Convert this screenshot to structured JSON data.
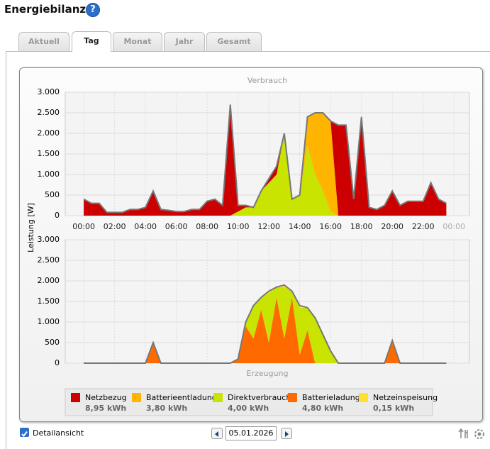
{
  "header": {
    "title": "Energiebilanz",
    "help": "?"
  },
  "tabs": [
    "Aktuell",
    "Tag",
    "Monat",
    "Jahr",
    "Gesamt"
  ],
  "active_tab": 1,
  "y_axis_label": "Leistung [W]",
  "chart_data": [
    {
      "type": "area",
      "stacked": true,
      "title": "Verbrauch",
      "xlim": [
        -1.2,
        25
      ],
      "ylim": [
        0,
        3000
      ],
      "xticks": [
        {
          "value": 0,
          "label": "00:00"
        },
        {
          "value": 2,
          "label": "02:00"
        },
        {
          "value": 4,
          "label": "04:00"
        },
        {
          "value": 6,
          "label": "06:00"
        },
        {
          "value": 8,
          "label": "08:00"
        },
        {
          "value": 10,
          "label": "10:00"
        },
        {
          "value": 12,
          "label": "12:00"
        },
        {
          "value": 14,
          "label": "14:00"
        },
        {
          "value": 16,
          "label": "16:00"
        },
        {
          "value": 18,
          "label": "18:00"
        },
        {
          "value": 20,
          "label": "20:00"
        },
        {
          "value": 22,
          "label": "22:00"
        },
        {
          "value": 24,
          "label": "00:00"
        }
      ],
      "yticks": [
        0,
        {
          "value": 500,
          "label": "500"
        },
        {
          "value": 1000,
          "label": "1.000"
        },
        {
          "value": 1500,
          "label": "1.500"
        },
        {
          "value": 2000,
          "label": "2.000"
        },
        {
          "value": 2500,
          "label": "2.500"
        },
        {
          "value": 3000,
          "label": "3.000"
        }
      ],
      "grid": true,
      "x": [
        0,
        0.5,
        1,
        1.5,
        2,
        2.5,
        3,
        3.5,
        4,
        4.5,
        5,
        5.5,
        6,
        6.5,
        7,
        7.5,
        8,
        8.5,
        9,
        9.5,
        10,
        10.5,
        11,
        11.5,
        12,
        12.5,
        13,
        13.5,
        14,
        14.5,
        15,
        15.5,
        16,
        16.5,
        17,
        17.5,
        18,
        18.5,
        19,
        19.5,
        20,
        20.5,
        21,
        21.5,
        22,
        22.5,
        23,
        23.5
      ],
      "series": [
        {
          "name": "Direktverbrauch",
          "amount": "4,00 kWh",
          "color": "#c8e400",
          "values": [
            0,
            0,
            0,
            0,
            0,
            0,
            0,
            0,
            0,
            0,
            0,
            0,
            0,
            0,
            0,
            0,
            0,
            0,
            0,
            0,
            100,
            200,
            200,
            600,
            800,
            1000,
            2000,
            400,
            500,
            1700,
            1000,
            600,
            100,
            0,
            0,
            0,
            0,
            0,
            0,
            0,
            0,
            0,
            0,
            0,
            0,
            0,
            0,
            0
          ]
        },
        {
          "name": "Batterieentladung",
          "amount": "3,80 kWh",
          "color": "#ffb400",
          "values": [
            0,
            0,
            0,
            0,
            0,
            0,
            0,
            0,
            0,
            0,
            0,
            0,
            0,
            0,
            0,
            0,
            0,
            0,
            0,
            0,
            0,
            0,
            0,
            0,
            0,
            0,
            0,
            0,
            0,
            700,
            1500,
            1900,
            2200,
            0,
            0,
            0,
            0,
            0,
            0,
            0,
            0,
            0,
            0,
            0,
            0,
            0,
            0,
            0
          ]
        },
        {
          "name": "Netzbezug",
          "amount": "8,95 kWh",
          "color": "#cc0000",
          "values": [
            400,
            300,
            300,
            80,
            80,
            80,
            150,
            150,
            200,
            600,
            150,
            130,
            100,
            100,
            150,
            150,
            350,
            400,
            250,
            2700,
            150,
            50,
            0,
            0,
            100,
            200,
            0,
            0,
            0,
            0,
            0,
            0,
            0,
            2200,
            2200,
            400,
            2400,
            200,
            150,
            250,
            600,
            250,
            350,
            350,
            350,
            800,
            400,
            300
          ]
        }
      ]
    },
    {
      "type": "area",
      "stacked": true,
      "title": "Erzeugung",
      "xlim": [
        -1.2,
        25
      ],
      "ylim": [
        0,
        3000
      ],
      "yticks": [
        0,
        {
          "value": 500,
          "label": "500"
        },
        {
          "value": 1000,
          "label": "1.000"
        },
        {
          "value": 1500,
          "label": "1.500"
        },
        {
          "value": 2000,
          "label": "2.000"
        },
        {
          "value": 2500,
          "label": "2.500"
        },
        {
          "value": 3000,
          "label": "3.000"
        }
      ],
      "grid": true,
      "x": [
        0,
        0.5,
        1,
        1.5,
        2,
        2.5,
        3,
        3.5,
        4,
        4.5,
        5,
        5.5,
        6,
        6.5,
        7,
        7.5,
        8,
        8.5,
        9,
        9.5,
        10,
        10.5,
        11,
        11.5,
        12,
        12.5,
        13,
        13.5,
        14,
        14.5,
        15,
        15.5,
        16,
        16.5,
        17,
        17.5,
        18,
        18.5,
        19,
        19.5,
        20,
        20.5,
        21,
        21.5,
        22,
        22.5,
        23,
        23.5
      ],
      "series": [
        {
          "name": "Batterieladung",
          "amount": "4,80 kWh",
          "color": "#ff6a00",
          "values": [
            0,
            0,
            0,
            0,
            0,
            0,
            0,
            0,
            0,
            500,
            0,
            0,
            0,
            0,
            0,
            0,
            0,
            0,
            0,
            0,
            100,
            900,
            600,
            1300,
            500,
            1600,
            600,
            1600,
            200,
            800,
            0,
            0,
            0,
            0,
            0,
            0,
            0,
            0,
            0,
            0,
            550,
            0,
            0,
            0,
            0,
            0,
            0,
            0
          ]
        },
        {
          "name": "Direktverbrauch",
          "color": "#c8e400",
          "values": [
            0,
            0,
            0,
            0,
            0,
            0,
            0,
            0,
            0,
            0,
            0,
            0,
            0,
            0,
            0,
            0,
            0,
            0,
            0,
            0,
            0,
            100,
            800,
            300,
            1200,
            250,
            1250,
            150,
            1150,
            550,
            1100,
            700,
            300,
            0,
            0,
            0,
            0,
            0,
            0,
            0,
            0,
            0,
            0,
            0,
            0,
            0,
            0,
            0
          ]
        },
        {
          "name": "Netzeinspeisung",
          "amount": "0,15 kWh",
          "color": "#ffe030",
          "values": [
            0,
            0,
            0,
            0,
            0,
            0,
            0,
            0,
            0,
            0,
            0,
            0,
            0,
            0,
            0,
            0,
            0,
            0,
            0,
            0,
            0,
            0,
            0,
            0,
            50,
            0,
            50,
            0,
            50,
            0,
            0,
            0,
            0,
            0,
            0,
            0,
            0,
            0,
            0,
            0,
            0,
            0,
            0,
            0,
            0,
            0,
            0,
            0
          ]
        }
      ]
    }
  ],
  "footer": {
    "checkbox_label": "Detailansicht",
    "checked": true,
    "date": "05.01.2026"
  }
}
